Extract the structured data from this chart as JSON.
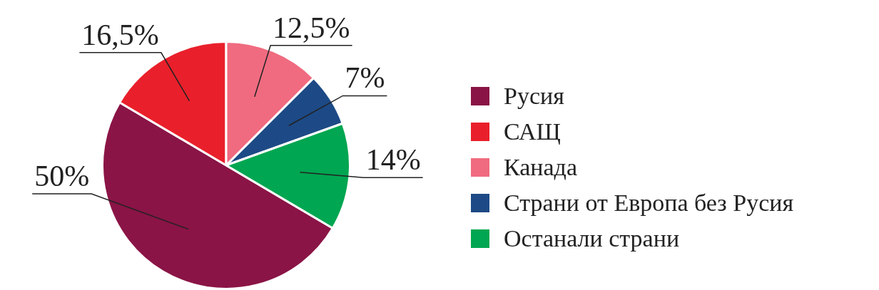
{
  "chart_data": {
    "type": "pie",
    "categories": [
      "Русия",
      "САЩ",
      "Канада",
      "Страни от Европа без Русия",
      "Останали страни"
    ],
    "values": [
      50,
      16.5,
      12.5,
      7,
      14
    ],
    "colors": [
      "#8a1446",
      "#e9202b",
      "#f06b80",
      "#1d4a86",
      "#00a651"
    ],
    "value_labels": [
      "50%",
      "16,5%",
      "12,5%",
      "7%",
      "14%"
    ],
    "legend": "right"
  }
}
